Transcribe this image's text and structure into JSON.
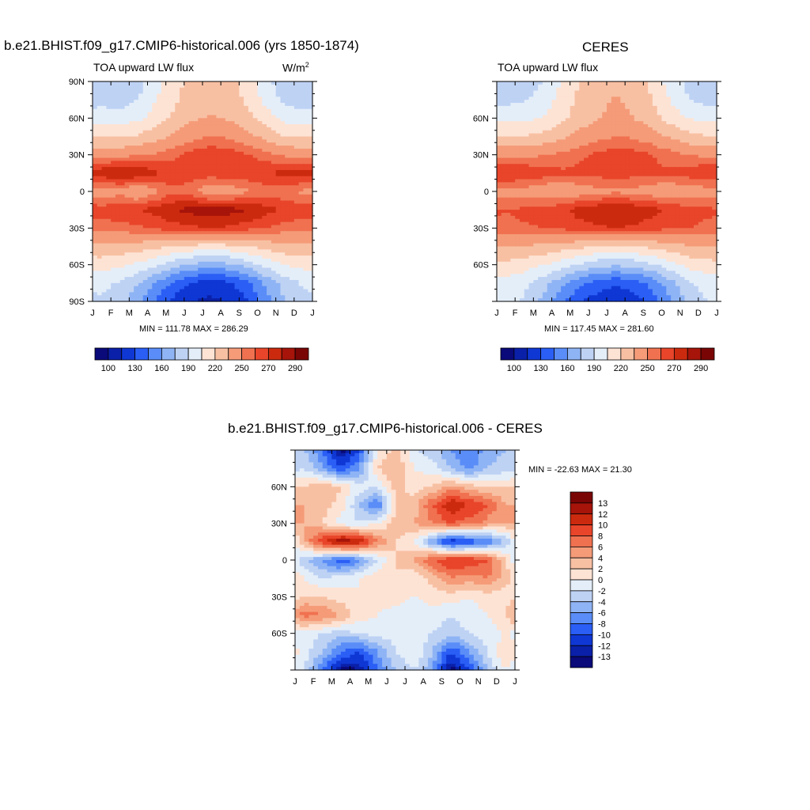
{
  "panels": [
    {
      "title": "b.e21.BHIST.f09_g17.CMIP6-historical.006 (yrs 1850-1874)",
      "subtitle_left": "TOA upward LW flux",
      "subtitle_right_base": "W/m",
      "subtitle_right_sup": "2",
      "minmax": "MIN = 111.78 MAX = 286.29",
      "y_ticks": [
        "90N",
        "60N",
        "30N",
        "0",
        "30S",
        "60S",
        "90S"
      ],
      "x_ticks": [
        "J",
        "F",
        "M",
        "A",
        "M",
        "J",
        "J",
        "A",
        "S",
        "O",
        "N",
        "D",
        "J"
      ]
    },
    {
      "title": "CERES",
      "subtitle_left": "TOA upward LW flux",
      "minmax": "MIN = 117.45 MAX = 281.60",
      "y_ticks": [
        "60N",
        "30N",
        "0",
        "30S",
        "60S"
      ],
      "x_ticks": [
        "J",
        "F",
        "M",
        "A",
        "M",
        "J",
        "J",
        "A",
        "S",
        "O",
        "N",
        "D",
        "J"
      ]
    },
    {
      "title": "b.e21.BHIST.f09_g17.CMIP6-historical.006 - CERES",
      "minmax": "MIN = -22.63 MAX =  21.30",
      "y_ticks": [
        "60N",
        "30N",
        "0",
        "30S",
        "60S"
      ],
      "x_ticks": [
        "J",
        "F",
        "M",
        "A",
        "M",
        "J",
        "J",
        "A",
        "S",
        "O",
        "N",
        "D",
        "J"
      ]
    }
  ],
  "colorbar_abs": {
    "colors": [
      "#0a0a7a",
      "#0a20a8",
      "#0f37d4",
      "#2a5ef5",
      "#5a8df7",
      "#8fb4f5",
      "#bed2f4",
      "#e4eef9",
      "#fde3d4",
      "#f8c0a3",
      "#f59b78",
      "#f07150",
      "#e8452a",
      "#cc2a0e",
      "#a6140a",
      "#7a0505"
    ],
    "labels": [
      "100",
      "130",
      "160",
      "190",
      "220",
      "250",
      "270",
      "290"
    ]
  },
  "colorbar_diff": {
    "colors": [
      "#7a0505",
      "#a6140a",
      "#cc2a0e",
      "#e8452a",
      "#f07150",
      "#f59b78",
      "#f8c0a3",
      "#fde3d4",
      "#e4eef9",
      "#bed2f4",
      "#8fb4f5",
      "#5a8df7",
      "#2a5ef5",
      "#0f37d4",
      "#0a20a8",
      "#0a0a7a"
    ],
    "labels": [
      "13",
      "12",
      "10",
      "8",
      "6",
      "4",
      "2",
      "0",
      "-2",
      "-4",
      "-6",
      "-8",
      "-10",
      "-12",
      "-13"
    ]
  },
  "chart_data": [
    {
      "type": "heatmap",
      "title": "b.e21.BHIST.f09_g17.CMIP6-historical.006 (yrs 1850-1874)",
      "variable": "TOA upward LW flux",
      "units": "W/m2",
      "x": [
        "J",
        "F",
        "M",
        "A",
        "M",
        "J",
        "J",
        "A",
        "S",
        "O",
        "N",
        "D"
      ],
      "y": [
        90,
        75,
        60,
        45,
        30,
        15,
        0,
        -15,
        -30,
        -45,
        -60,
        -75,
        -90
      ],
      "ylim": [
        -90,
        90
      ],
      "values": [
        [
          180,
          178,
          185,
          200,
          215,
          225,
          228,
          225,
          212,
          195,
          180,
          176
        ],
        [
          185,
          183,
          190,
          205,
          218,
          228,
          232,
          228,
          216,
          200,
          186,
          182
        ],
        [
          198,
          197,
          202,
          212,
          224,
          233,
          236,
          233,
          224,
          212,
          200,
          196
        ],
        [
          218,
          218,
          222,
          230,
          238,
          246,
          250,
          248,
          240,
          230,
          220,
          218
        ],
        [
          245,
          246,
          248,
          252,
          258,
          264,
          268,
          266,
          260,
          254,
          248,
          245
        ],
        [
          278,
          283,
          280,
          272,
          266,
          266,
          266,
          268,
          268,
          270,
          274,
          276
        ],
        [
          242,
          246,
          234,
          248,
          258,
          252,
          240,
          242,
          248,
          254,
          252,
          248
        ],
        [
          265,
          267,
          270,
          274,
          280,
          284,
          286,
          284,
          280,
          274,
          268,
          266
        ],
        [
          255,
          256,
          258,
          262,
          266,
          268,
          270,
          268,
          264,
          260,
          256,
          254
        ],
        [
          232,
          230,
          228,
          224,
          220,
          216,
          214,
          216,
          220,
          226,
          230,
          232
        ],
        [
          212,
          208,
          202,
          192,
          180,
          172,
          168,
          172,
          182,
          196,
          206,
          210
        ],
        [
          195,
          188,
          175,
          158,
          140,
          128,
          122,
          128,
          142,
          165,
          182,
          192
        ],
        [
          188,
          180,
          165,
          142,
          125,
          115,
          112,
          116,
          130,
          155,
          175,
          185
        ]
      ]
    },
    {
      "type": "heatmap",
      "title": "CERES",
      "variable": "TOA upward LW flux",
      "x": [
        "J",
        "F",
        "M",
        "A",
        "M",
        "J",
        "J",
        "A",
        "S",
        "O",
        "N",
        "D"
      ],
      "y": [
        90,
        75,
        60,
        45,
        30,
        15,
        0,
        -15,
        -30,
        -45,
        -60,
        -75,
        -90
      ],
      "ylim": [
        -90,
        90
      ],
      "values": [
        [
          178,
          180,
          190,
          205,
          220,
          230,
          232,
          228,
          215,
          198,
          185,
          176
        ],
        [
          186,
          188,
          196,
          210,
          224,
          232,
          236,
          232,
          220,
          204,
          190,
          184
        ],
        [
          200,
          201,
          206,
          216,
          226,
          234,
          238,
          235,
          226,
          214,
          204,
          200
        ],
        [
          220,
          221,
          224,
          232,
          240,
          246,
          250,
          248,
          242,
          232,
          224,
          221
        ],
        [
          246,
          247,
          249,
          253,
          258,
          262,
          266,
          264,
          260,
          255,
          250,
          247
        ],
        [
          272,
          270,
          266,
          262,
          262,
          264,
          266,
          264,
          262,
          262,
          266,
          270
        ],
        [
          246,
          244,
          240,
          238,
          242,
          246,
          248,
          246,
          242,
          240,
          242,
          244
        ],
        [
          260,
          262,
          265,
          268,
          274,
          278,
          280,
          278,
          274,
          268,
          264,
          262
        ],
        [
          258,
          259,
          260,
          262,
          266,
          268,
          270,
          268,
          264,
          262,
          260,
          258
        ],
        [
          236,
          234,
          232,
          228,
          224,
          220,
          218,
          220,
          224,
          230,
          234,
          236
        ],
        [
          216,
          212,
          206,
          198,
          188,
          180,
          178,
          180,
          188,
          200,
          210,
          214
        ],
        [
          200,
          194,
          182,
          166,
          150,
          138,
          132,
          138,
          150,
          170,
          188,
          196
        ],
        [
          195,
          188,
          172,
          150,
          132,
          122,
          118,
          122,
          138,
          160,
          180,
          190
        ]
      ]
    },
    {
      "type": "heatmap",
      "title": "b.e21.BHIST.f09_g17.CMIP6-historical.006 - CERES",
      "x": [
        "J",
        "F",
        "M",
        "A",
        "M",
        "J",
        "J",
        "A",
        "S",
        "O",
        "N",
        "D"
      ],
      "y": [
        90,
        75,
        60,
        45,
        30,
        15,
        0,
        -15,
        -30,
        -45,
        -60,
        -75,
        -90
      ],
      "ylim": [
        -90,
        90
      ],
      "values": [
        [
          -4,
          -8,
          -14,
          -10,
          0,
          3,
          -2,
          -3,
          -6,
          -8,
          -5,
          -4
        ],
        [
          -2,
          -6,
          -10,
          -6,
          2,
          4,
          0,
          -1,
          -4,
          -7,
          -4,
          -3
        ],
        [
          2,
          4,
          2,
          -1,
          -2,
          3,
          1,
          2,
          5,
          3,
          2,
          2
        ],
        [
          4,
          3,
          1,
          -4,
          -8,
          2,
          3,
          8,
          12,
          10,
          8,
          4
        ],
        [
          4,
          2,
          -1,
          -2,
          0,
          3,
          4,
          6,
          8,
          7,
          5,
          4
        ],
        [
          4,
          10,
          14,
          12,
          6,
          2,
          0,
          -6,
          -12,
          -10,
          -8,
          -4
        ],
        [
          -4,
          -6,
          -10,
          -7,
          -2,
          2,
          4,
          8,
          10,
          10,
          8,
          2
        ],
        [
          0,
          -2,
          -1,
          0,
          2,
          2,
          0,
          3,
          6,
          5,
          6,
          3
        ],
        [
          2,
          2,
          1,
          0,
          1,
          1,
          0,
          1,
          1,
          0,
          1,
          1
        ],
        [
          7,
          6,
          4,
          1,
          0,
          -1,
          -2,
          -1,
          -2,
          -1,
          0,
          2
        ],
        [
          -1,
          -2,
          -3,
          -2,
          -1,
          -1,
          -1,
          -2,
          -3,
          -2,
          -1,
          0
        ],
        [
          -1,
          -4,
          -8,
          -10,
          -6,
          -2,
          0,
          -4,
          -10,
          -6,
          -2,
          2
        ],
        [
          -2,
          -8,
          -14,
          -13,
          -8,
          -4,
          -2,
          -6,
          -14,
          -10,
          -4,
          0
        ]
      ]
    }
  ]
}
